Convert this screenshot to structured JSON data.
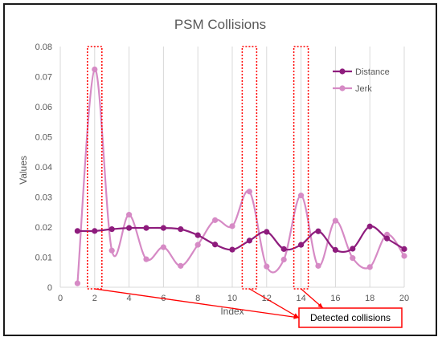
{
  "chart_data": {
    "type": "line",
    "title": "PSM Collisions",
    "xlabel": "Index",
    "ylabel": "Values",
    "xlim": [
      0,
      20
    ],
    "ylim": [
      0,
      0.08
    ],
    "x_ticks": [
      "0",
      "2",
      "4",
      "6",
      "8",
      "10",
      "12",
      "14",
      "16",
      "18",
      "20"
    ],
    "y_ticks": [
      "0",
      "0.01",
      "0.02",
      "0.03",
      "0.04",
      "0.05",
      "0.06",
      "0.07",
      "0.08"
    ],
    "grid": "vertical",
    "legend_position": "top-right",
    "x": [
      1,
      2,
      3,
      4,
      5,
      6,
      7,
      8,
      9,
      10,
      11,
      12,
      13,
      14,
      15,
      16,
      17,
      18,
      19,
      20
    ],
    "series": [
      {
        "name": "Distance",
        "color": "#8E1C7D",
        "values": [
          0.0187,
          0.0187,
          0.0193,
          0.0197,
          0.0197,
          0.0197,
          0.0193,
          0.0173,
          0.0142,
          0.0125,
          0.0155,
          0.0184,
          0.0127,
          0.0141,
          0.0186,
          0.0124,
          0.0128,
          0.0202,
          0.0162,
          0.0127
        ]
      },
      {
        "name": "Jerk",
        "color": "#D68AC5",
        "values": [
          0.0013,
          0.0724,
          0.0122,
          0.0241,
          0.0093,
          0.0133,
          0.0071,
          0.0141,
          0.0223,
          0.0203,
          0.0318,
          0.0069,
          0.0092,
          0.0305,
          0.0071,
          0.0221,
          0.0097,
          0.0067,
          0.0175,
          0.0104
        ]
      }
    ],
    "annotation": {
      "text": "Detected collisions",
      "highlighted_x": [
        2,
        11,
        14
      ],
      "box_color": "#FF0000"
    }
  }
}
